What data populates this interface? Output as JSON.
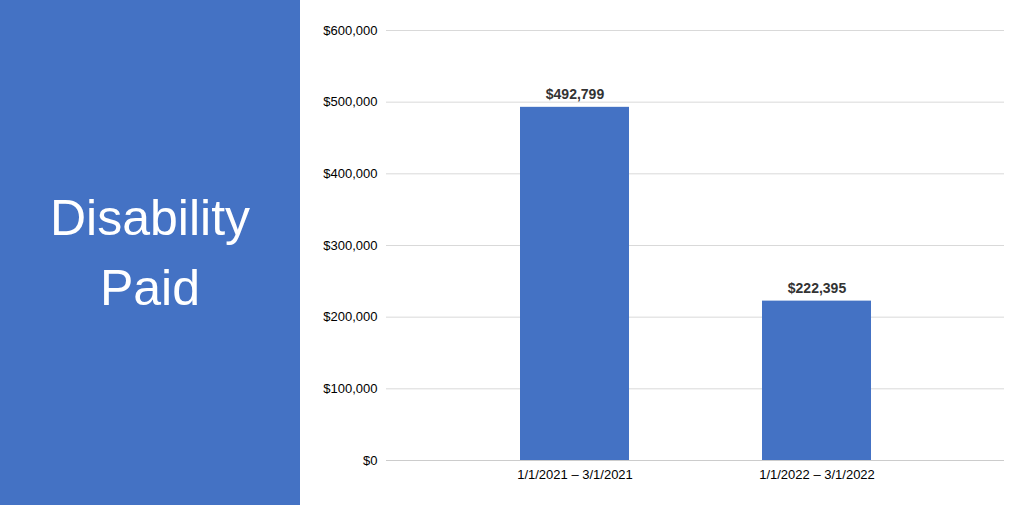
{
  "chart_data": {
    "type": "bar",
    "annotations": [
      "Disability",
      "Paid"
    ],
    "categories": [
      "1/1/2021 – 3/1/2021",
      "1/1/2022 – 3/1/2022"
    ],
    "values": [
      492799,
      222395
    ],
    "value_labels": [
      "$492,799",
      "$222,395"
    ],
    "data_labels": true,
    "color": "#4472C4",
    "ylim": [
      0,
      600000
    ],
    "yticks": [
      {
        "value": 0,
        "label": "$0"
      },
      {
        "value": 100000,
        "label": "$100,000"
      },
      {
        "value": 200000,
        "label": "$200,000"
      },
      {
        "value": 300000,
        "label": "$300,000"
      },
      {
        "value": 400000,
        "label": "$400,000"
      },
      {
        "value": 500000,
        "label": "$500,000"
      },
      {
        "value": 600000,
        "label": "$600,000"
      }
    ],
    "grid": true
  }
}
